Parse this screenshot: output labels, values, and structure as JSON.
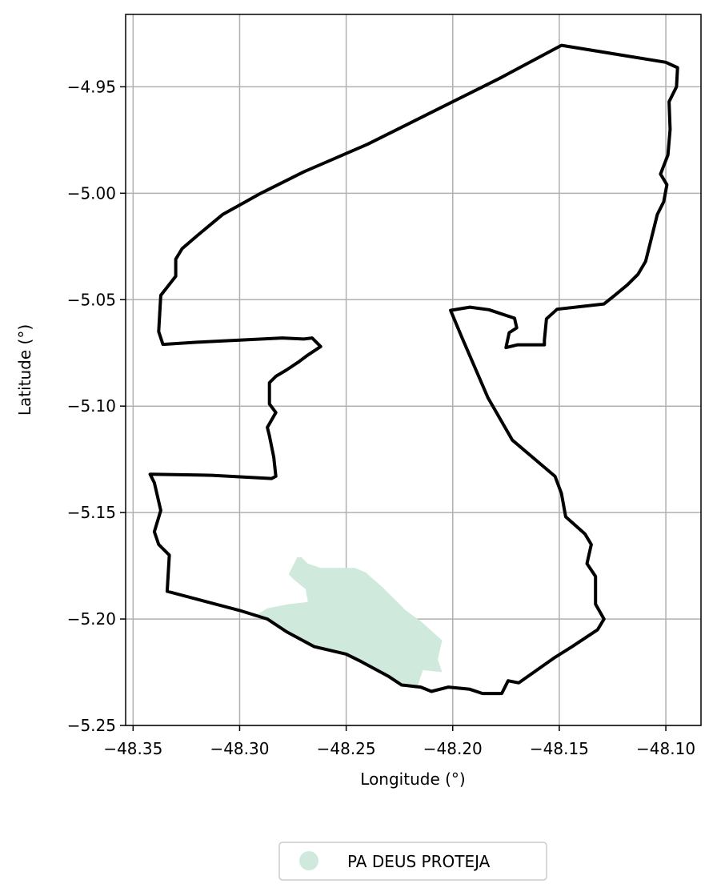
{
  "chart_data": {
    "type": "map",
    "xlabel": "Longitude (°)",
    "ylabel": "Latitude (°)",
    "xlim": [
      -48.3535,
      -48.0835
    ],
    "ylim": [
      -5.25,
      -4.916
    ],
    "xticks": [
      {
        "value": -48.35,
        "label": "−48.35"
      },
      {
        "value": -48.3,
        "label": "−48.30"
      },
      {
        "value": -48.25,
        "label": "−48.25"
      },
      {
        "value": -48.2,
        "label": "−48.20"
      },
      {
        "value": -48.15,
        "label": "−48.15"
      },
      {
        "value": -48.1,
        "label": "−48.10"
      }
    ],
    "yticks": [
      {
        "value": -4.95,
        "label": "−4.95"
      },
      {
        "value": -5.0,
        "label": "−5.00"
      },
      {
        "value": -5.05,
        "label": "−5.05"
      },
      {
        "value": -5.1,
        "label": "−5.10"
      },
      {
        "value": -5.15,
        "label": "−5.15"
      },
      {
        "value": -5.2,
        "label": "−5.20"
      },
      {
        "value": -5.25,
        "label": "−5.25"
      }
    ],
    "grid": true,
    "legend_position": "bottom-center",
    "boundary": {
      "color": "#000000",
      "coordinates": [
        [
          -48.149,
          -4.9305
        ],
        [
          -48.1,
          -4.9385
        ],
        [
          -48.0945,
          -4.941
        ],
        [
          -48.095,
          -4.95
        ],
        [
          -48.0985,
          -4.957
        ],
        [
          -48.098,
          -4.97
        ],
        [
          -48.099,
          -4.982
        ],
        [
          -48.1025,
          -4.991
        ],
        [
          -48.0995,
          -4.996
        ],
        [
          -48.101,
          -5.004
        ],
        [
          -48.104,
          -5.01
        ],
        [
          -48.1065,
          -5.02
        ],
        [
          -48.108,
          -5.026
        ],
        [
          -48.1095,
          -5.032
        ],
        [
          -48.113,
          -5.038
        ],
        [
          -48.118,
          -5.043
        ],
        [
          -48.124,
          -5.048
        ],
        [
          -48.129,
          -5.052
        ],
        [
          -48.151,
          -5.0545
        ],
        [
          -48.156,
          -5.059
        ],
        [
          -48.157,
          -5.069
        ],
        [
          -48.157,
          -5.0712
        ],
        [
          -48.1695,
          -5.0712
        ],
        [
          -48.175,
          -5.0725
        ],
        [
          -48.1735,
          -5.0655
        ],
        [
          -48.17,
          -5.0632
        ],
        [
          -48.171,
          -5.0587
        ],
        [
          -48.183,
          -5.0547
        ],
        [
          -48.192,
          -5.0535
        ],
        [
          -48.201,
          -5.055
        ],
        [
          -48.196,
          -5.067
        ],
        [
          -48.1835,
          -5.096
        ],
        [
          -48.172,
          -5.116
        ],
        [
          -48.152,
          -5.133
        ],
        [
          -48.149,
          -5.141
        ],
        [
          -48.147,
          -5.152
        ],
        [
          -48.138,
          -5.16
        ],
        [
          -48.135,
          -5.165
        ],
        [
          -48.137,
          -5.174
        ],
        [
          -48.133,
          -5.18
        ],
        [
          -48.133,
          -5.193
        ],
        [
          -48.129,
          -5.2
        ],
        [
          -48.132,
          -5.205
        ],
        [
          -48.144,
          -5.213
        ],
        [
          -48.152,
          -5.218
        ],
        [
          -48.169,
          -5.23
        ],
        [
          -48.174,
          -5.229
        ],
        [
          -48.177,
          -5.235
        ],
        [
          -48.186,
          -5.235
        ],
        [
          -48.192,
          -5.233
        ],
        [
          -48.202,
          -5.232
        ],
        [
          -48.21,
          -5.234
        ],
        [
          -48.215,
          -5.232
        ],
        [
          -48.224,
          -5.231
        ],
        [
          -48.23,
          -5.227
        ],
        [
          -48.243,
          -5.22
        ],
        [
          -48.25,
          -5.2165
        ],
        [
          -48.265,
          -5.213
        ],
        [
          -48.278,
          -5.206
        ],
        [
          -48.287,
          -5.2
        ],
        [
          -48.3,
          -5.196
        ],
        [
          -48.319,
          -5.191
        ],
        [
          -48.334,
          -5.187
        ],
        [
          -48.333,
          -5.17
        ],
        [
          -48.338,
          -5.165
        ],
        [
          -48.34,
          -5.159
        ],
        [
          -48.337,
          -5.149
        ],
        [
          -48.34,
          -5.136
        ],
        [
          -48.342,
          -5.132
        ],
        [
          -48.313,
          -5.1325
        ],
        [
          -48.285,
          -5.134
        ],
        [
          -48.283,
          -5.133
        ],
        [
          -48.284,
          -5.124
        ],
        [
          -48.286,
          -5.114
        ],
        [
          -48.287,
          -5.11
        ],
        [
          -48.283,
          -5.103
        ],
        [
          -48.286,
          -5.099
        ],
        [
          -48.286,
          -5.089
        ],
        [
          -48.283,
          -5.086
        ],
        [
          -48.278,
          -5.083
        ],
        [
          -48.272,
          -5.079
        ],
        [
          -48.268,
          -5.076
        ],
        [
          -48.262,
          -5.072
        ],
        [
          -48.266,
          -5.068
        ],
        [
          -48.27,
          -5.0685
        ],
        [
          -48.28,
          -5.068
        ],
        [
          -48.3,
          -5.069
        ],
        [
          -48.32,
          -5.07
        ],
        [
          -48.336,
          -5.071
        ],
        [
          -48.338,
          -5.065
        ],
        [
          -48.337,
          -5.048
        ],
        [
          -48.33,
          -5.039
        ],
        [
          -48.33,
          -5.031
        ],
        [
          -48.327,
          -5.026
        ],
        [
          -48.32,
          -5.02
        ],
        [
          -48.308,
          -5.01
        ],
        [
          -48.29,
          -5.0
        ],
        [
          -48.27,
          -4.99
        ],
        [
          -48.24,
          -4.977
        ],
        [
          -48.21,
          -4.962
        ],
        [
          -48.178,
          -4.946
        ],
        [
          -48.149,
          -4.9305
        ]
      ]
    },
    "area": {
      "name": "PA DEUS PROTEJA",
      "color": "#cfeadc",
      "coordinates": [
        [
          -48.273,
          -5.171
        ],
        [
          -48.271,
          -5.171
        ],
        [
          -48.268,
          -5.174
        ],
        [
          -48.262,
          -5.176
        ],
        [
          -48.257,
          -5.176
        ],
        [
          -48.246,
          -5.176
        ],
        [
          -48.241,
          -5.178
        ],
        [
          -48.233,
          -5.185
        ],
        [
          -48.222,
          -5.196
        ],
        [
          -48.215,
          -5.201
        ],
        [
          -48.205,
          -5.21
        ],
        [
          -48.207,
          -5.219
        ],
        [
          -48.205,
          -5.225
        ],
        [
          -48.214,
          -5.224
        ],
        [
          -48.217,
          -5.233
        ],
        [
          -48.224,
          -5.231
        ],
        [
          -48.23,
          -5.227
        ],
        [
          -48.243,
          -5.22
        ],
        [
          -48.25,
          -5.2165
        ],
        [
          -48.265,
          -5.213
        ],
        [
          -48.278,
          -5.206
        ],
        [
          -48.287,
          -5.2
        ],
        [
          -48.294,
          -5.199
        ],
        [
          -48.287,
          -5.195
        ],
        [
          -48.277,
          -5.193
        ],
        [
          -48.268,
          -5.192
        ],
        [
          -48.269,
          -5.186
        ],
        [
          -48.274,
          -5.182
        ],
        [
          -48.277,
          -5.179
        ],
        [
          -48.273,
          -5.171
        ]
      ]
    }
  },
  "legend": {
    "entries": [
      {
        "label": "PA DEUS PROTEJA",
        "color": "#cfeadc"
      }
    ]
  }
}
